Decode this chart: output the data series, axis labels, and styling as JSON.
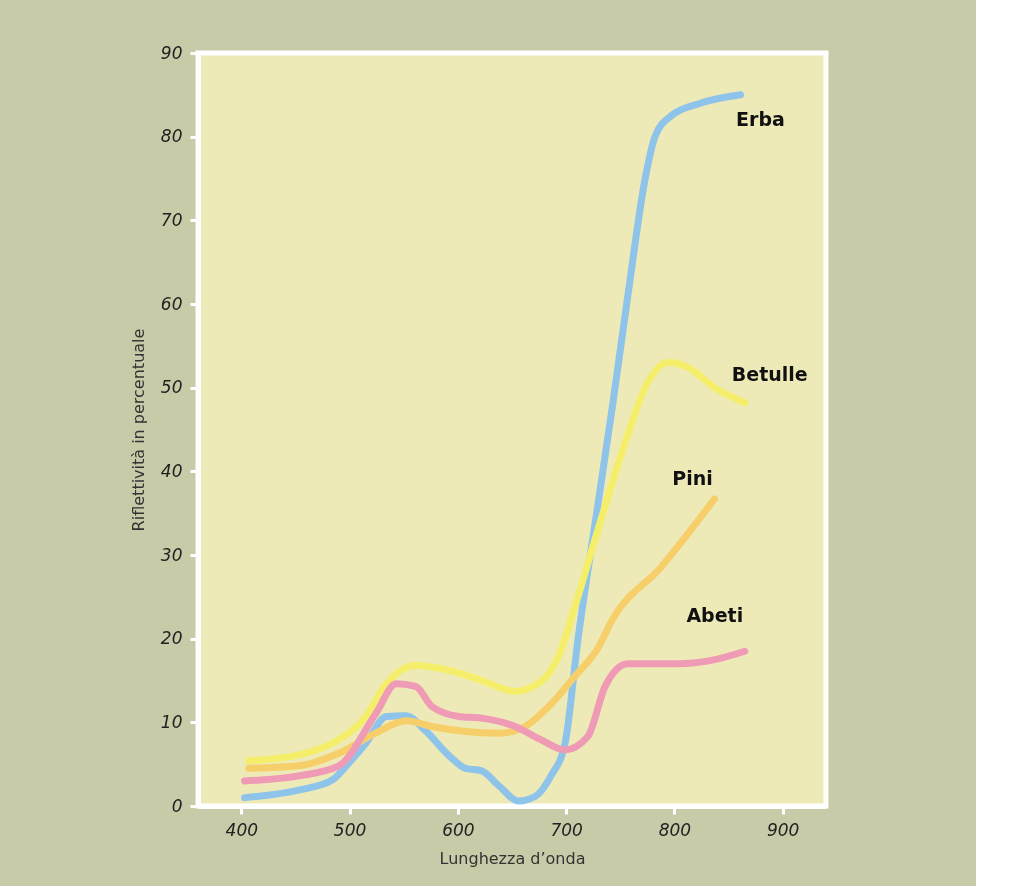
{
  "chart_data": {
    "type": "line",
    "xlabel": "Lunghezza d’onda",
    "ylabel": "Riflettività in percentuale",
    "xlim": [
      360,
      940
    ],
    "ylim": [
      0,
      90
    ],
    "xticks": [
      400,
      500,
      600,
      700,
      800,
      900
    ],
    "yticks": [
      0,
      10,
      20,
      30,
      40,
      50,
      60,
      70,
      80,
      90
    ],
    "line_style": "solid",
    "series": [
      {
        "name": "Erba",
        "color": "#8ec3ea",
        "x": [
          403,
          453,
          484,
          499,
          515,
          534,
          552,
          570,
          592,
          607,
          622,
          638,
          656,
          672,
          686,
          699,
          711,
          727,
          743,
          757,
          773,
          782,
          797,
          824,
          861
        ],
        "values": [
          1,
          1.9,
          3.1,
          5.1,
          7.5,
          10.7,
          10.8,
          9,
          6,
          4.5,
          4.2,
          2.4,
          0.6,
          1.2,
          3.6,
          7.5,
          20,
          34,
          48,
          61,
          75,
          80,
          82.5,
          84,
          85
        ]
      },
      {
        "name": "Betulle",
        "color": "#f5ee6a",
        "x": [
          407,
          453,
          484,
          515,
          534,
          561,
          592,
          622,
          653,
          677,
          693,
          708,
          727,
          755,
          773,
          794,
          813,
          837,
          865
        ],
        "values": [
          5.4,
          6.1,
          7.5,
          10.7,
          14.6,
          16.8,
          16.2,
          15,
          13.7,
          14.9,
          17.9,
          23.8,
          32,
          43.6,
          50,
          53,
          52.4,
          50,
          48.2
        ]
      },
      {
        "name": "Pini",
        "color": "#f7cf6a",
        "x": [
          407,
          453,
          490,
          524,
          552,
          576,
          607,
          638,
          662,
          684,
          708,
          730,
          742,
          788,
          837
        ],
        "values": [
          4.5,
          4.8,
          6.3,
          8.7,
          10.2,
          9.5,
          8.9,
          8.7,
          9.5,
          11.9,
          15.5,
          19,
          22.1,
          28.6,
          36.7
        ]
      },
      {
        "name": "Abeti",
        "color": "#ef9bb5",
        "x": [
          403,
          453,
          490,
          524,
          543,
          561,
          576,
          601,
          622,
          653,
          677,
          699,
          720,
          736,
          757,
          803,
          834,
          865
        ],
        "values": [
          3,
          3.6,
          4.8,
          11,
          14.6,
          14.3,
          11.9,
          10.7,
          10.5,
          9.5,
          7.9,
          6.7,
          8.3,
          14.3,
          17,
          17,
          17.4,
          18.5
        ]
      }
    ]
  }
}
